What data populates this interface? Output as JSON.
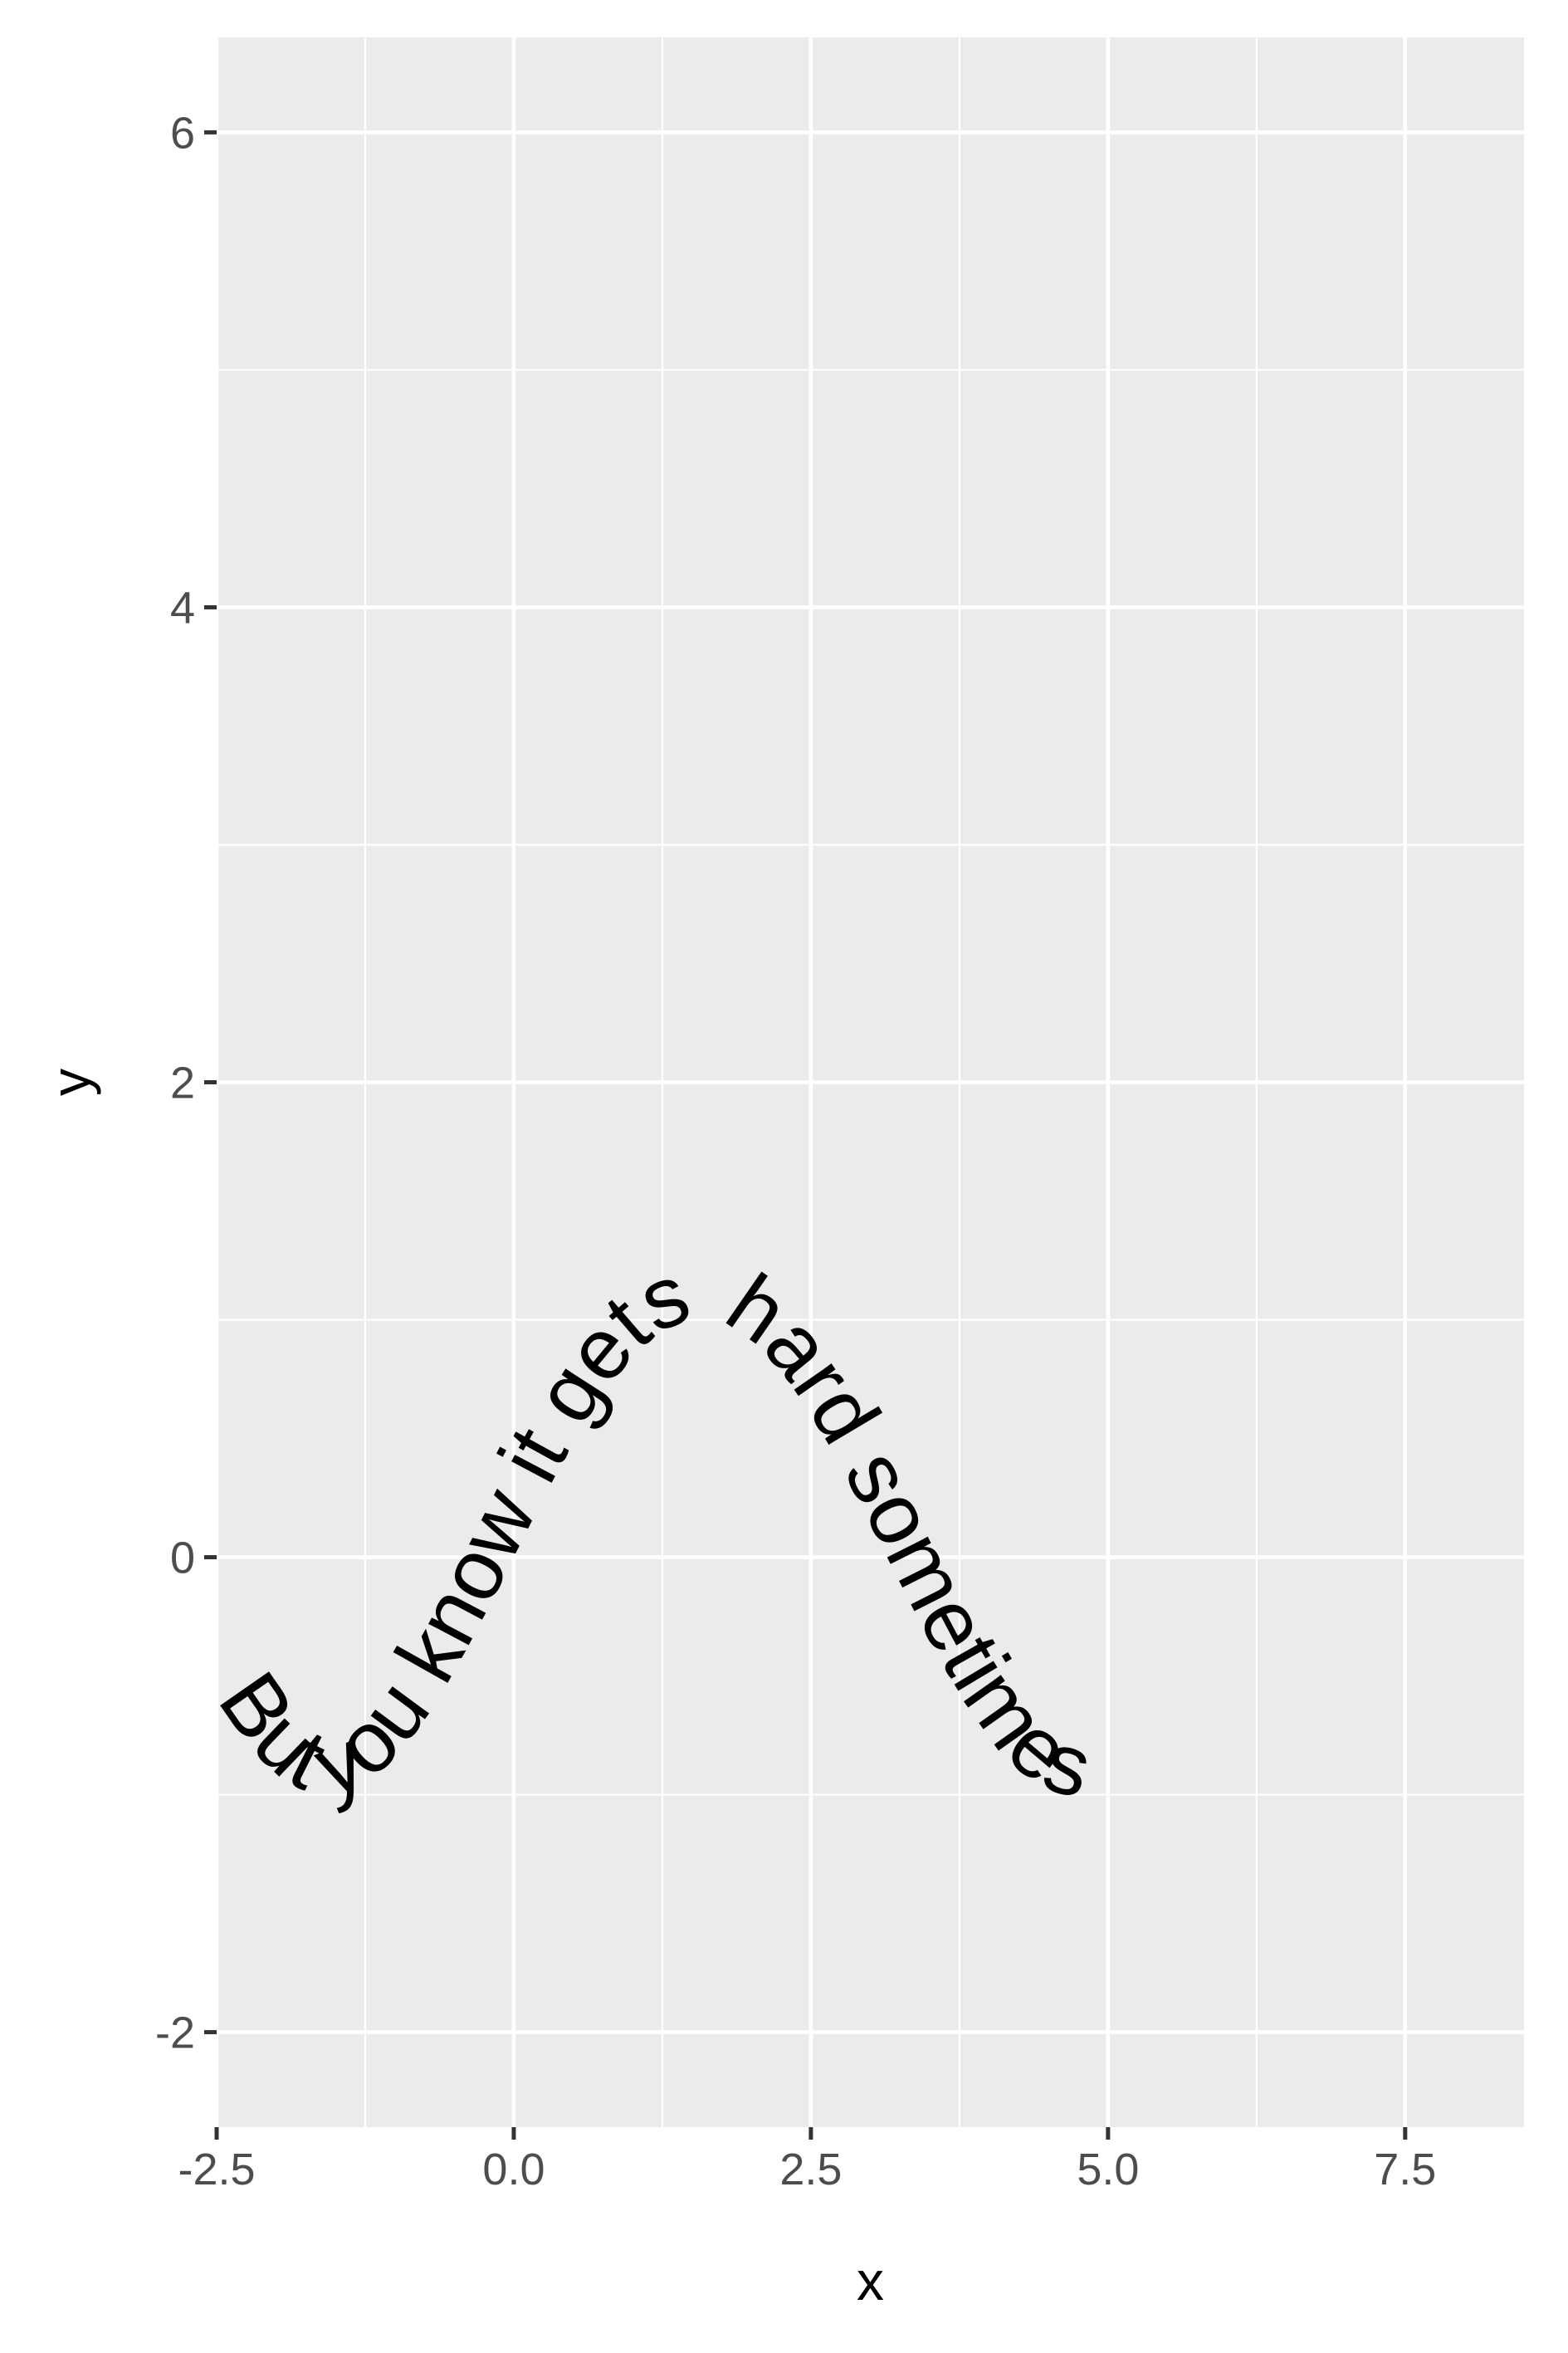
{
  "chart_data": {
    "type": "text-on-path",
    "title": "",
    "xlabel": "x",
    "ylabel": "y",
    "xlim": [
      -2.5,
      8.5
    ],
    "ylim": [
      -2.4,
      6.4
    ],
    "x_ticks": [
      -2.5,
      0.0,
      2.5,
      5.0,
      7.5
    ],
    "x_tick_labels": [
      "-2.5",
      "0.0",
      "2.5",
      "5.0",
      "7.5"
    ],
    "y_ticks": [
      -2,
      0,
      2,
      4,
      6
    ],
    "y_tick_labels": [
      "-2",
      "0",
      "2",
      "4",
      "6"
    ],
    "x_minor": [
      -1.25,
      1.25,
      3.75,
      6.25
    ],
    "y_minor": [
      -1,
      1,
      3,
      5
    ],
    "curve": {
      "function": "sin",
      "x_range": [
        -2.5,
        8.5
      ],
      "label": "But you know it gets hard sometimes"
    },
    "grid": true,
    "legend": "none",
    "colors": {
      "panel": "#ebebeb",
      "grid": "#ffffff",
      "tick_text": "#4d4d4d",
      "tick_mark": "#333333",
      "text": "#000000"
    }
  }
}
